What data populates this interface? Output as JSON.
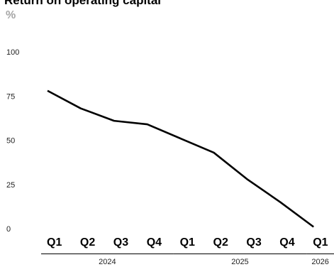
{
  "chart_data": {
    "type": "line",
    "title": "Return on operating capital",
    "unit": "%",
    "ylim": [
      0,
      100
    ],
    "yticks": [
      "0",
      "25",
      "50",
      "75",
      "100"
    ],
    "grid": false,
    "categories": [
      "Q1",
      "Q2",
      "Q3",
      "Q4",
      "Q1",
      "Q2",
      "Q3",
      "Q4",
      "Q1"
    ],
    "year_groups": [
      {
        "label": "2024",
        "span": 4
      },
      {
        "label": "2025",
        "span": 4
      },
      {
        "label": "2026",
        "span": 1
      }
    ],
    "series": [
      {
        "values": [
          78,
          68,
          61,
          59,
          51,
          43,
          28,
          15,
          1
        ],
        "color": "#000000"
      }
    ]
  }
}
